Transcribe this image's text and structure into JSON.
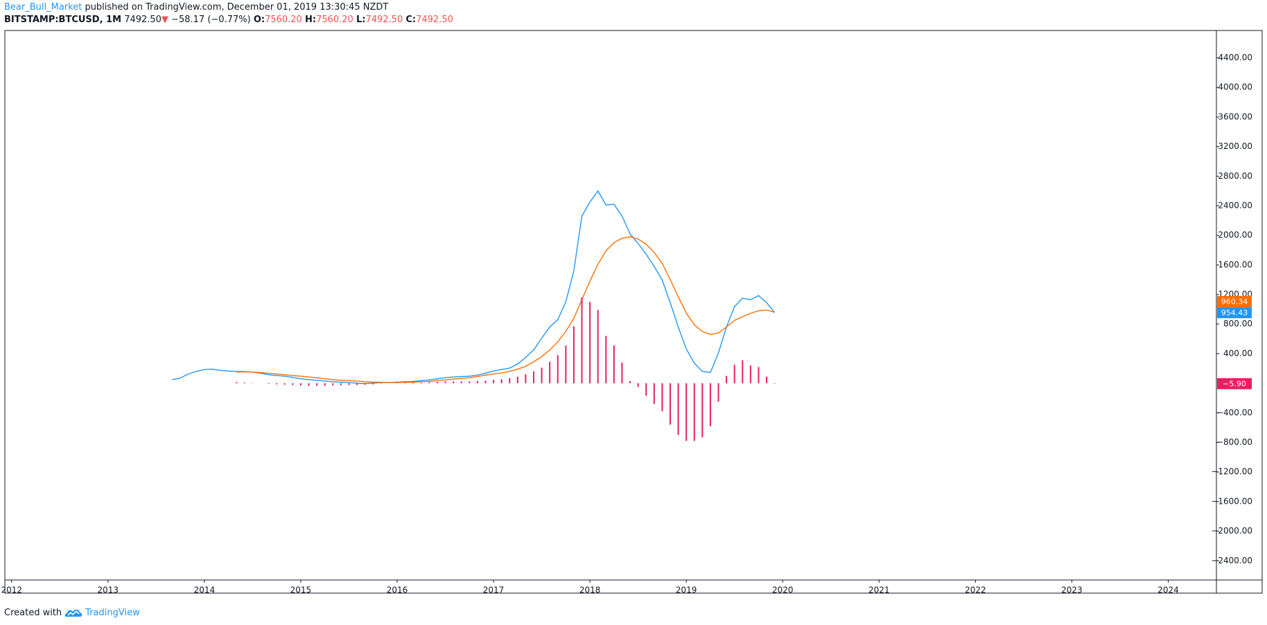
{
  "header": {
    "author": "Bear_Bull_Market",
    "published": "published on TradingView.com, December 01, 2019 13:30:45 NZDT",
    "symbol": "BITSTAMP:BTCUSD, 1M",
    "price": "7492.50",
    "arrow": "▼",
    "change": "−58.17 (−0.77%)",
    "ohlc": [
      {
        "key": "O:",
        "value": "7560.20"
      },
      {
        "key": "H:",
        "value": "7560.20"
      },
      {
        "key": "L:",
        "value": "7492.50"
      },
      {
        "key": "C:",
        "value": "7492.50"
      }
    ]
  },
  "footer": {
    "created": "Created with",
    "brand": "TradingView"
  },
  "chart_data": {
    "type": "line",
    "x": [
      "2013-09",
      "2013-10",
      "2013-11",
      "2013-12",
      "2014-01",
      "2014-02",
      "2014-03",
      "2014-04",
      "2014-05",
      "2014-06",
      "2014-07",
      "2014-08",
      "2014-09",
      "2014-10",
      "2014-11",
      "2014-12",
      "2015-01",
      "2015-02",
      "2015-03",
      "2015-04",
      "2015-05",
      "2015-06",
      "2015-07",
      "2015-08",
      "2015-09",
      "2015-10",
      "2015-11",
      "2015-12",
      "2016-01",
      "2016-02",
      "2016-03",
      "2016-04",
      "2016-05",
      "2016-06",
      "2016-07",
      "2016-08",
      "2016-09",
      "2016-10",
      "2016-11",
      "2016-12",
      "2017-01",
      "2017-02",
      "2017-03",
      "2017-04",
      "2017-05",
      "2017-06",
      "2017-07",
      "2017-08",
      "2017-09",
      "2017-10",
      "2017-11",
      "2017-12",
      "2018-01",
      "2018-02",
      "2018-03",
      "2018-04",
      "2018-05",
      "2018-06",
      "2018-07",
      "2018-08",
      "2018-09",
      "2018-10",
      "2018-11",
      "2018-12",
      "2019-01",
      "2019-02",
      "2019-03",
      "2019-04",
      "2019-05",
      "2019-06",
      "2019-07",
      "2019-08",
      "2019-09",
      "2019-10",
      "2019-11",
      "2019-12"
    ],
    "series": [
      {
        "type": "line",
        "color": "#2196f3",
        "values": [
          50,
          70,
          125,
          160,
          185,
          190,
          175,
          165,
          160,
          160,
          150,
          135,
          115,
          105,
          95,
          80,
          60,
          50,
          40,
          30,
          20,
          15,
          10,
          0,
          -5,
          0,
          10,
          10,
          15,
          20,
          25,
          35,
          45,
          60,
          75,
          85,
          90,
          95,
          110,
          135,
          165,
          185,
          205,
          260,
          350,
          450,
          610,
          760,
          860,
          1100,
          1520,
          2260,
          2450,
          2600,
          2410,
          2420,
          2260,
          2020,
          1890,
          1745,
          1580,
          1395,
          1090,
          760,
          465,
          270,
          160,
          145,
          410,
          760,
          1035,
          1150,
          1130,
          1185,
          1090,
          954.43
        ]
      },
      {
        "type": "line",
        "color": "#ff6d00",
        "values": [
          null,
          null,
          null,
          null,
          null,
          null,
          null,
          null,
          150,
          155,
          150,
          145,
          135,
          125,
          115,
          105,
          95,
          85,
          75,
          60,
          50,
          40,
          35,
          30,
          20,
          15,
          12,
          10,
          10,
          12,
          15,
          20,
          25,
          35,
          45,
          55,
          65,
          75,
          90,
          110,
          125,
          140,
          160,
          190,
          230,
          290,
          360,
          450,
          560,
          700,
          880,
          1130,
          1380,
          1610,
          1790,
          1900,
          1960,
          1980,
          1950,
          1880,
          1770,
          1620,
          1400,
          1170,
          950,
          790,
          700,
          660,
          680,
          760,
          850,
          900,
          945,
          980,
          990,
          960.34
        ]
      },
      {
        "type": "bar",
        "color": "#e91e63",
        "values": [
          null,
          null,
          null,
          null,
          null,
          null,
          null,
          null,
          15,
          10,
          5,
          0,
          -10,
          -15,
          -20,
          -25,
          -30,
          -35,
          -35,
          -35,
          -30,
          -30,
          -25,
          -25,
          -20,
          -15,
          -5,
          0,
          5,
          5,
          10,
          10,
          15,
          20,
          25,
          25,
          25,
          25,
          30,
          35,
          45,
          55,
          70,
          90,
          120,
          160,
          210,
          290,
          380,
          510,
          770,
          1160,
          1100,
          990,
          640,
          510,
          280,
          30,
          -50,
          -170,
          -280,
          -380,
          -560,
          -700,
          -780,
          -780,
          -730,
          -580,
          -250,
          100,
          250,
          310,
          240,
          220,
          90,
          -5.9
        ]
      }
    ],
    "price_labels": [
      {
        "value": 960.34,
        "label": "960.34",
        "color": "#ff6d00"
      },
      {
        "value": 954.43,
        "label": "954.43",
        "color": "#2196f3"
      },
      {
        "value": -5.9,
        "label": "−5.90",
        "color": "#e91e63"
      }
    ],
    "xlim": [
      2011.93,
      2024.5
    ],
    "xticks": [
      2012,
      2013,
      2014,
      2015,
      2016,
      2017,
      2018,
      2019,
      2020,
      2021,
      2022,
      2023,
      2024
    ],
    "ylim": [
      -2660,
      4770
    ],
    "yticks": [
      {
        "value": 4400,
        "label": "4400.00"
      },
      {
        "value": 4000,
        "label": "4000.00"
      },
      {
        "value": 3600,
        "label": "3600.00"
      },
      {
        "value": 3200,
        "label": "3200.00"
      },
      {
        "value": 2800,
        "label": "2800.00"
      },
      {
        "value": 2400,
        "label": "2400.00"
      },
      {
        "value": 2000,
        "label": "2000.00"
      },
      {
        "value": 1600,
        "label": "1600.00"
      },
      {
        "value": 1200,
        "label": "1200.00"
      },
      {
        "value": 800,
        "label": "800.00"
      },
      {
        "value": 400,
        "label": "400.00"
      },
      {
        "value": -400,
        "label": "−400.00"
      },
      {
        "value": -800,
        "label": "−800.00"
      },
      {
        "value": -1200,
        "label": "−1200.00"
      },
      {
        "value": -1600,
        "label": "−1600.00"
      },
      {
        "value": -2000,
        "label": "−2000.00"
      },
      {
        "value": -2400,
        "label": "−2400.00"
      }
    ],
    "grid": false
  }
}
